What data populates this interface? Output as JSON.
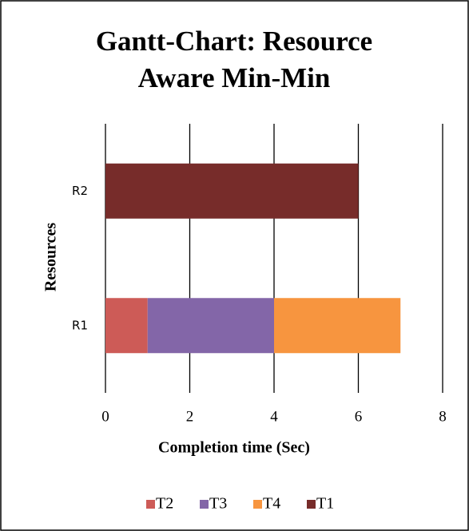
{
  "chart_data": {
    "type": "stacked_barh",
    "title": "Gantt-Chart: Resource Aware Min-Min",
    "title_lines": [
      "Gantt-Chart: Resource",
      "Aware Min-Min"
    ],
    "xlabel": "Completion time (Sec)",
    "ylabel": "Resources",
    "categories": [
      "R1",
      "R2"
    ],
    "series": [
      {
        "name": "T2",
        "color": "#cd5b57",
        "values": [
          1,
          0
        ]
      },
      {
        "name": "T3",
        "color": "#8366a8",
        "values": [
          3,
          0
        ]
      },
      {
        "name": "T4",
        "color": "#f7953f",
        "values": [
          3,
          0
        ]
      },
      {
        "name": "T1",
        "color": "#772c2a",
        "values": [
          0,
          6
        ]
      }
    ],
    "xlim": [
      0,
      8
    ],
    "xticks": [
      0,
      2,
      4,
      6,
      8
    ],
    "grid": true,
    "legend": "bottom"
  }
}
